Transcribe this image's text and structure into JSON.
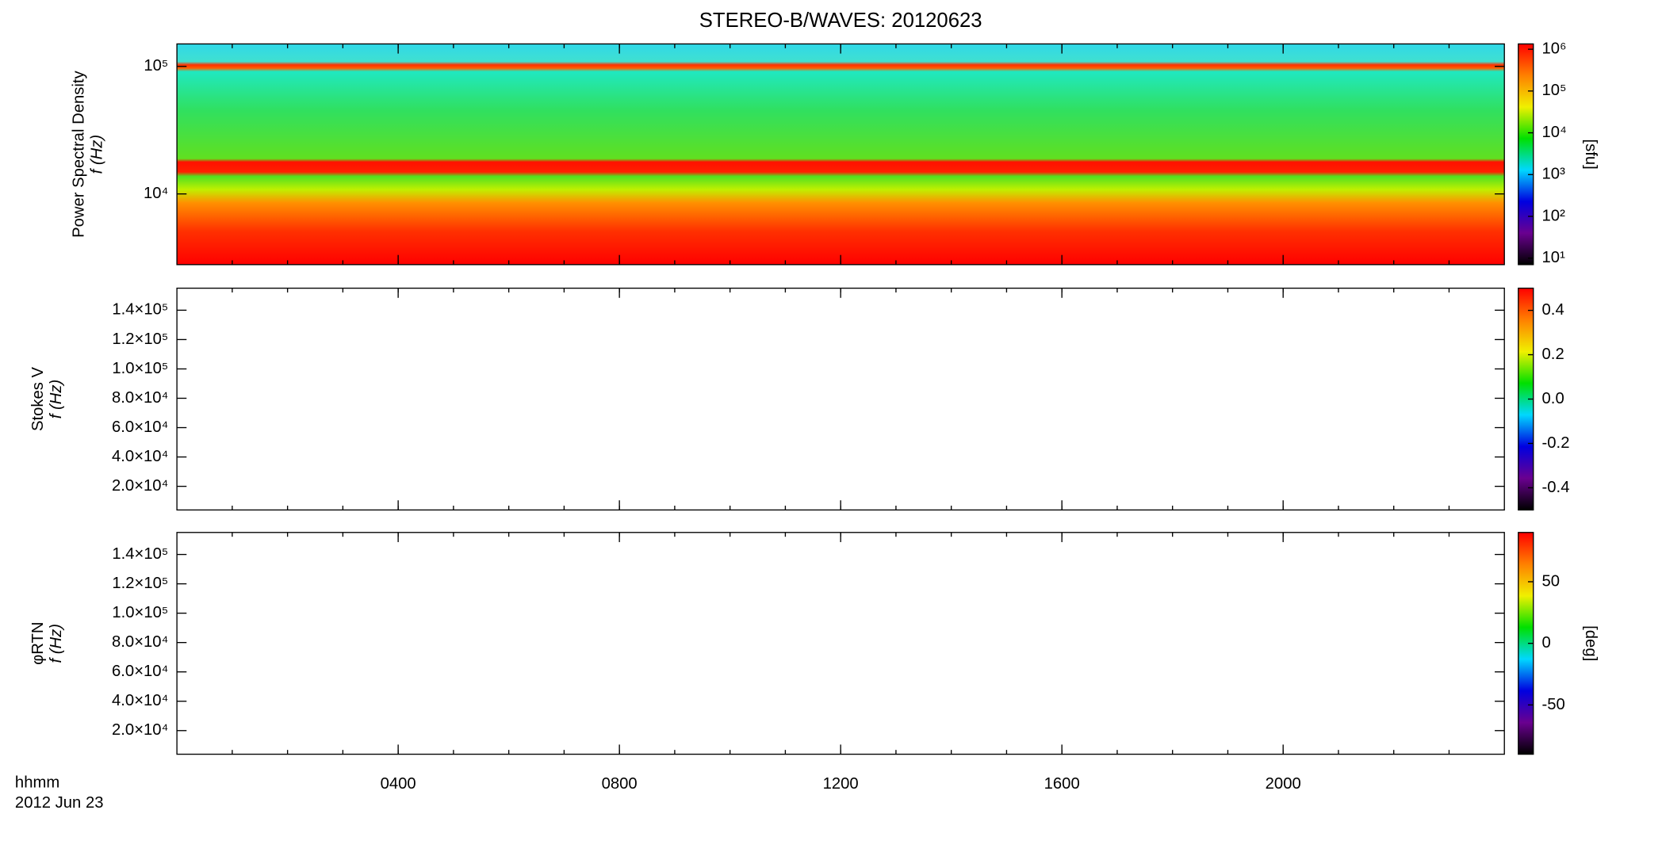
{
  "title": "STEREO-B/WAVES: 20120623",
  "x_axis": {
    "xlim": [
      0,
      24
    ],
    "xticks": [
      {
        "value": 4,
        "label": "0400"
      },
      {
        "value": 8,
        "label": "0800"
      },
      {
        "value": 12,
        "label": "1200"
      },
      {
        "value": 16,
        "label": "1600"
      },
      {
        "value": 20,
        "label": "2000"
      }
    ],
    "label_lines": [
      "hhmm",
      "2012 Jun 23"
    ]
  },
  "colormap": [
    "#000000",
    "#6a0090",
    "#0000e0",
    "#00d8ff",
    "#00e000",
    "#f0f000",
    "#ff8000",
    "#ff0000"
  ],
  "chart_data": [
    {
      "type": "heatmap",
      "y_label": "Power Spectral Density",
      "y_sublabel": "f (Hz)",
      "log_y": true,
      "ylim": [
        2790,
        150000
      ],
      "yticks": [
        {
          "value": 10000,
          "label": "10⁴"
        },
        {
          "value": 100000,
          "label": "10⁵"
        }
      ],
      "colorbar": {
        "log": true,
        "lim": [
          7,
          1340000
        ],
        "label": "[sfu]",
        "ticks": [
          {
            "value": 10,
            "label": "10¹"
          },
          {
            "value": 100,
            "label": "10²"
          },
          {
            "value": 1000,
            "label": "10³"
          },
          {
            "value": 10000,
            "label": "10⁴"
          },
          {
            "value": 100000,
            "label": "10⁵"
          },
          {
            "value": 1000000,
            "label": "10⁶"
          }
        ]
      }
    },
    {
      "type": "heatmap",
      "y_label": "Stokes V",
      "y_sublabel": "f (Hz)",
      "log_y": false,
      "ylim": [
        3900,
        155000
      ],
      "yticks": [
        {
          "value": 20000,
          "label": "2.0×10⁴"
        },
        {
          "value": 40000,
          "label": "4.0×10⁴"
        },
        {
          "value": 60000,
          "label": "6.0×10⁴"
        },
        {
          "value": 80000,
          "label": "8.0×10⁴"
        },
        {
          "value": 100000,
          "label": "1.0×10⁵"
        },
        {
          "value": 120000,
          "label": "1.2×10⁵"
        },
        {
          "value": 140000,
          "label": "1.4×10⁵"
        }
      ],
      "colorbar": {
        "log": false,
        "lim": [
          -0.5,
          0.5
        ],
        "ticks": [
          -0.4,
          -0.2,
          {
            "value": 0,
            "label": "0.0"
          },
          0.2,
          0.4
        ]
      }
    },
    {
      "type": "heatmap",
      "y_label": "φRTN",
      "y_sublabel": "f (Hz)",
      "log_y": false,
      "ylim": [
        3900,
        155000
      ],
      "yticks": [
        {
          "value": 20000,
          "label": "2.0×10⁴"
        },
        {
          "value": 40000,
          "label": "4.0×10⁴"
        },
        {
          "value": 60000,
          "label": "6.0×10⁴"
        },
        {
          "value": 80000,
          "label": "8.0×10⁴"
        },
        {
          "value": 100000,
          "label": "1.0×10⁵"
        },
        {
          "value": 120000,
          "label": "1.2×10⁵"
        },
        {
          "value": 140000,
          "label": "1.4×10⁵"
        }
      ],
      "colorbar": {
        "log": false,
        "lim": [
          -90,
          90
        ],
        "label": "[deg]",
        "ticks": [
          -50,
          0,
          50
        ]
      }
    }
  ]
}
